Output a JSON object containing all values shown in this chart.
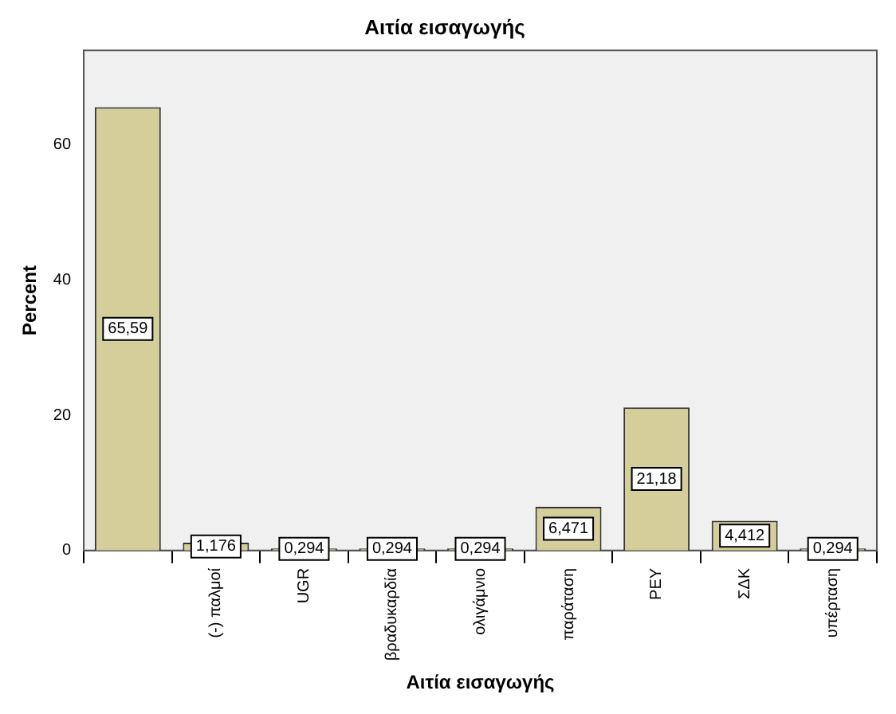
{
  "chart_data": {
    "type": "bar",
    "title": "Αιτία εισαγωγής",
    "xlabel": "Αιτία εισαγωγής",
    "ylabel": "Percent",
    "categories": [
      null,
      "(-) παλμοί",
      "UGR",
      "βραδυκαρδία",
      "ολιγάμνιο",
      "παράταση",
      "ΡΕΥ",
      "ΣΔΚ",
      "υπέρταση"
    ],
    "values": [
      65.59,
      1.176,
      0.294,
      0.294,
      0.294,
      6.471,
      21.18,
      4.412,
      0.294
    ],
    "value_labels": [
      "65,59",
      "1,176",
      "0,294",
      "0,294",
      "0,294",
      "6,471",
      "21,18",
      "4,412",
      "0,294"
    ],
    "color": "#d3ce9a",
    "ylim": [
      0,
      74
    ],
    "yticks": [
      0,
      20,
      40,
      60
    ],
    "grid": false,
    "legend": false
  }
}
